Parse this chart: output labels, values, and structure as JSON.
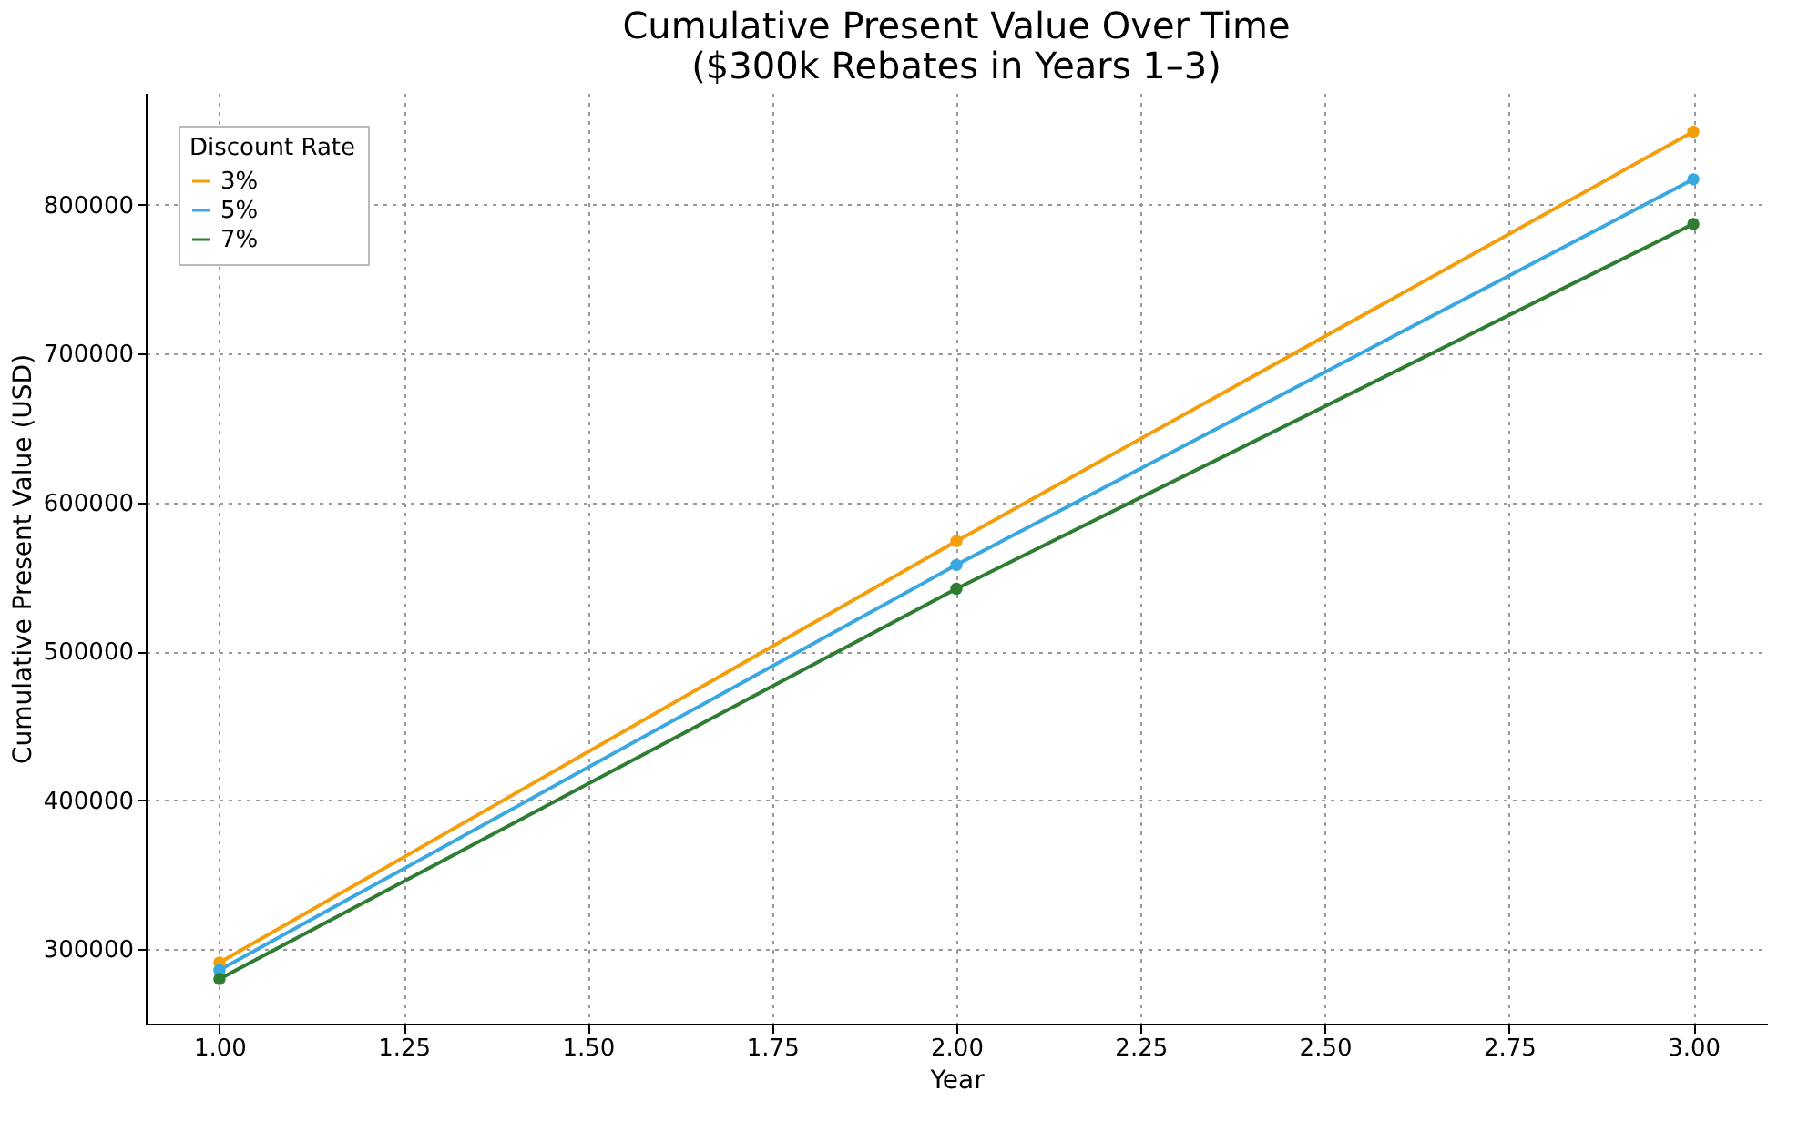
{
  "chart_data": {
    "type": "line",
    "title": "Cumulative Present Value Over Time\n($300k Rebates in Years 1–3)",
    "xlabel": "Year",
    "ylabel": "Cumulative Present Value (USD)",
    "legend_title": "Discount Rate",
    "x": [
      1,
      2,
      3
    ],
    "series": [
      {
        "name": "3%",
        "color": "#f59e0b",
        "values": [
          291000,
          574000,
          849000
        ]
      },
      {
        "name": "5%",
        "color": "#3aa8e0",
        "values": [
          286000,
          558000,
          817000
        ]
      },
      {
        "name": "7%",
        "color": "#2e7d32",
        "values": [
          280000,
          542000,
          787000
        ]
      }
    ],
    "xlim": [
      0.9,
      3.1
    ],
    "ylim": [
      250000,
      875000
    ],
    "xticks": [
      {
        "value": 1,
        "label": "1.00"
      },
      {
        "value": 1.25,
        "label": "1.25"
      },
      {
        "value": 1.5,
        "label": "1.50"
      },
      {
        "value": 1.75,
        "label": "1.75"
      },
      {
        "value": 2,
        "label": "2.00"
      },
      {
        "value": 2.25,
        "label": "2.25"
      },
      {
        "value": 2.5,
        "label": "2.50"
      },
      {
        "value": 2.75,
        "label": "2.75"
      },
      {
        "value": 3,
        "label": "3.00"
      }
    ],
    "yticks": [
      300000,
      400000,
      500000,
      600000,
      700000,
      800000
    ],
    "grid": true,
    "legend": "top left",
    "marker": "circle",
    "line_style": "solid"
  }
}
